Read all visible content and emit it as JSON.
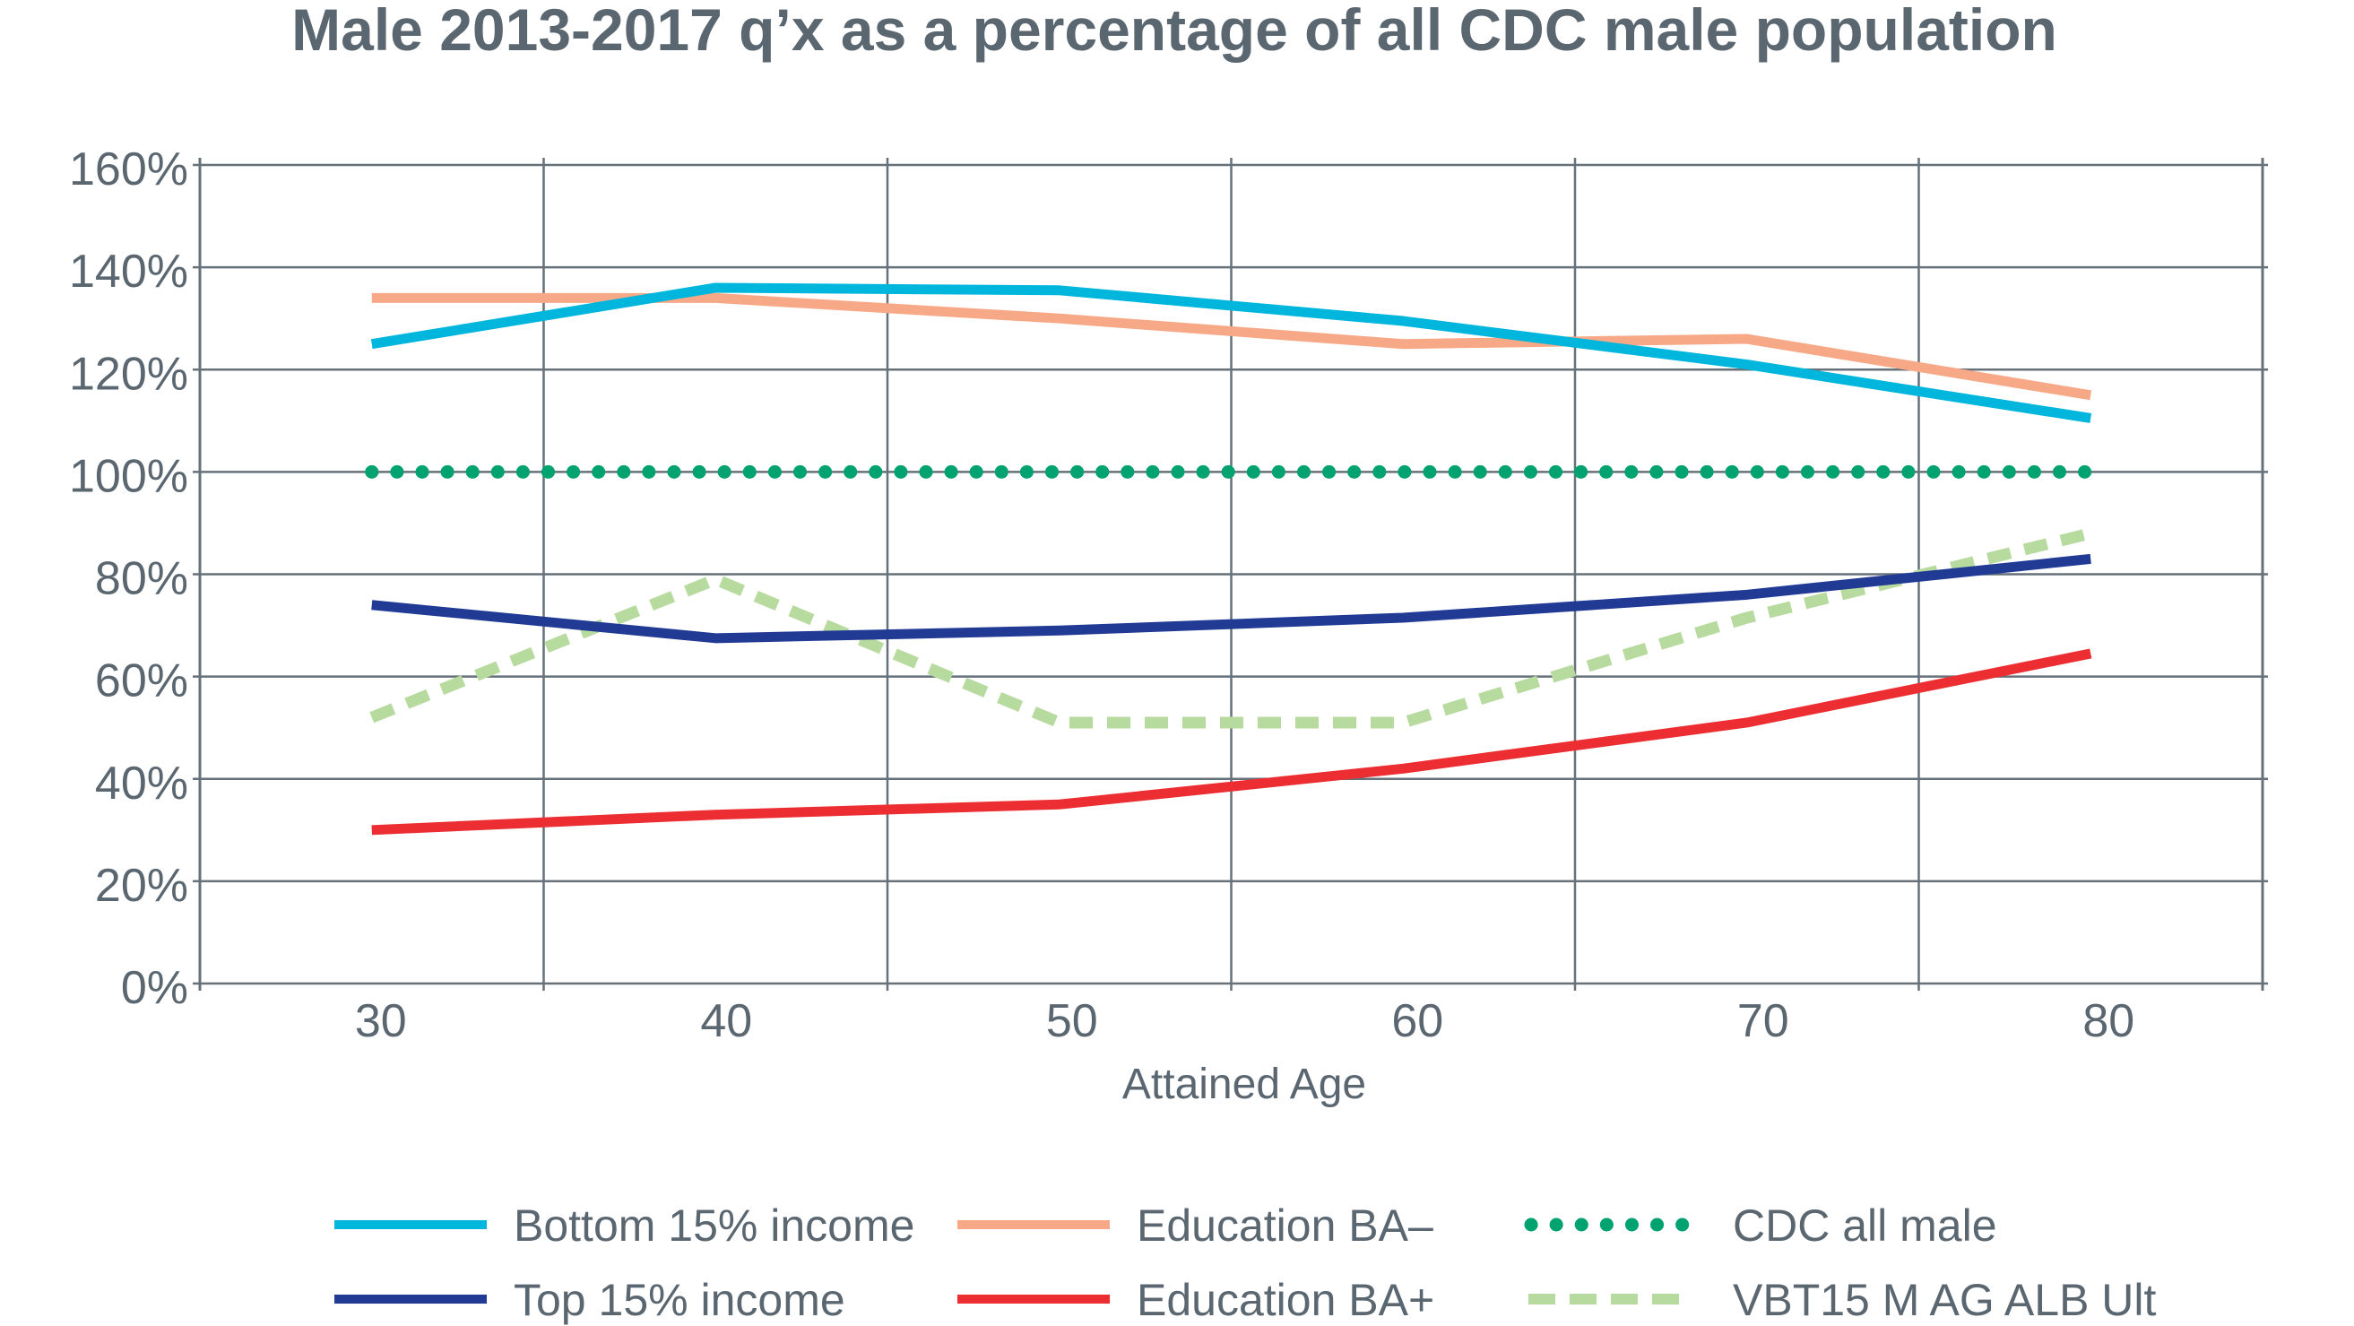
{
  "chart_data": {
    "type": "line",
    "title": "Male 2013-2017 q’x as a percentage of all CDC male population",
    "xlabel": "Attained Age",
    "ylabel": "",
    "categories": [
      "30",
      "40",
      "50",
      "60",
      "70",
      "80"
    ],
    "y_ticks": [
      "0%",
      "20%",
      "40%",
      "60%",
      "80%",
      "100%",
      "120%",
      "140%",
      "160%"
    ],
    "ylim": [
      0,
      160
    ],
    "y_unit": "%",
    "grid": true,
    "legend_position": "bottom",
    "series": [
      {
        "name": "Bottom 15% income",
        "color": "#00b6dd",
        "style": "solid",
        "values": [
          125,
          136,
          135.5,
          129.5,
          121,
          110.5
        ]
      },
      {
        "name": "Education BA–",
        "color": "#f7a987",
        "style": "solid",
        "values": [
          134,
          134,
          130,
          125,
          126,
          115
        ]
      },
      {
        "name": "CDC all male",
        "color": "#00a26f",
        "style": "dotted",
        "values": [
          100,
          100,
          100,
          100,
          100,
          100
        ]
      },
      {
        "name": "Top 15% income",
        "color": "#213b95",
        "style": "solid",
        "values": [
          74,
          67.5,
          69,
          71.5,
          76,
          83
        ]
      },
      {
        "name": "Education BA+",
        "color": "#ec2d32",
        "style": "solid",
        "values": [
          30,
          33,
          35,
          42,
          51,
          64.5
        ]
      },
      {
        "name": "VBT15 M AG ALB Ult",
        "color": "#b7da9f",
        "style": "dashed",
        "values": [
          52,
          79,
          51,
          51,
          71.5,
          88
        ]
      }
    ]
  }
}
